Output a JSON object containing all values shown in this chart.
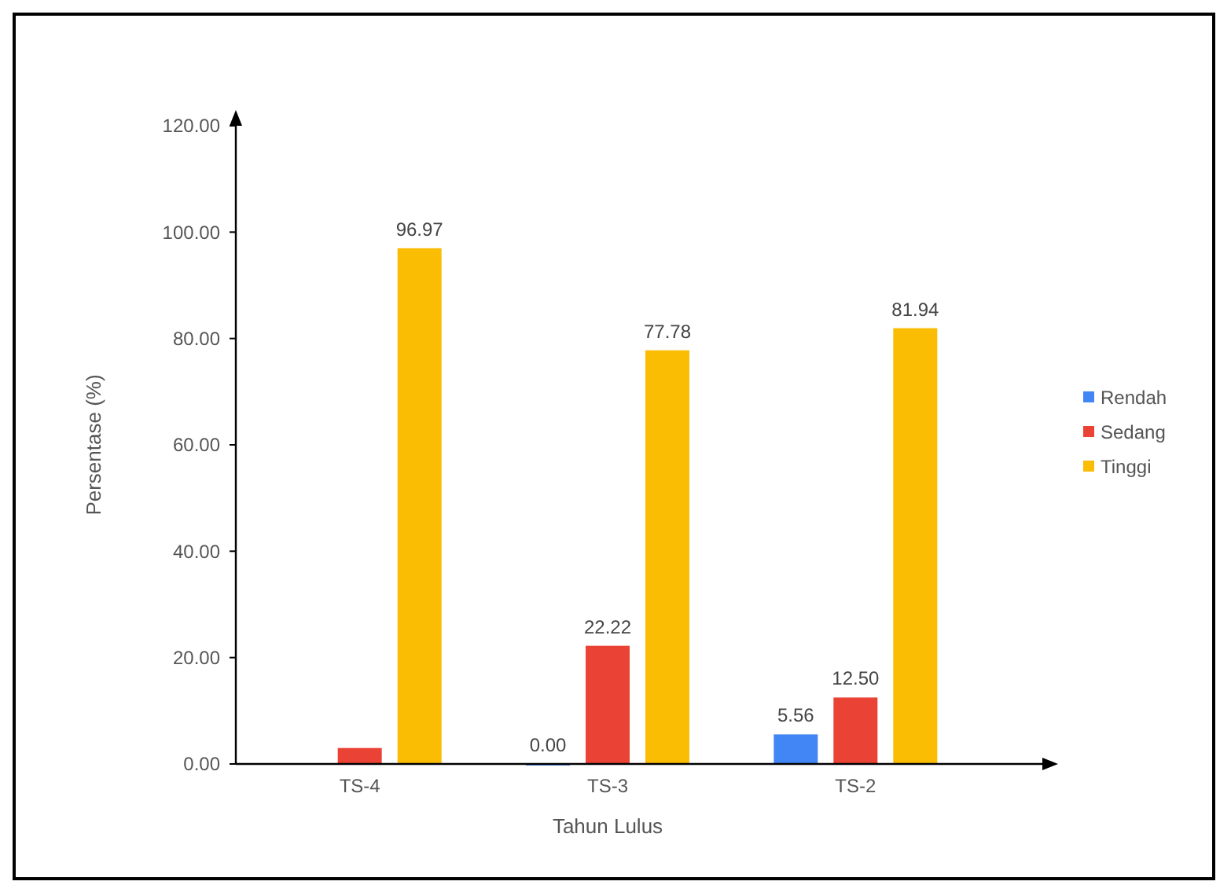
{
  "chart_data": {
    "type": "bar",
    "xlabel": "Tahun Lulus",
    "ylabel": "Persentase (%)",
    "categories": [
      "TS-4",
      "TS-3",
      "TS-2"
    ],
    "series": [
      {
        "name": "Rendah",
        "color": "#4285f4",
        "values": [
          null,
          0,
          5.56
        ],
        "value_labels": [
          null,
          "0.00",
          "5.56"
        ]
      },
      {
        "name": "Sedang",
        "color": "#ea4335",
        "values": [
          3,
          22.22,
          12.5
        ],
        "value_labels": [
          null,
          "22.22",
          "12.50"
        ]
      },
      {
        "name": "Tinggi",
        "color": "#fbbc04",
        "values": [
          96.97,
          77.78,
          81.94
        ],
        "value_labels": [
          "96.97",
          "77.78",
          "81.94"
        ]
      }
    ],
    "ylim": [
      0,
      120
    ],
    "yticks": [
      {
        "value": 0,
        "label": "0.00"
      },
      {
        "value": 20,
        "label": "20.00"
      },
      {
        "value": 40,
        "label": "40.00"
      },
      {
        "value": 60,
        "label": "60.00"
      },
      {
        "value": 80,
        "label": "80.00"
      },
      {
        "value": 100,
        "label": "100.00"
      },
      {
        "value": 120,
        "label": "120.00"
      }
    ],
    "grid": false,
    "legend": "right"
  }
}
